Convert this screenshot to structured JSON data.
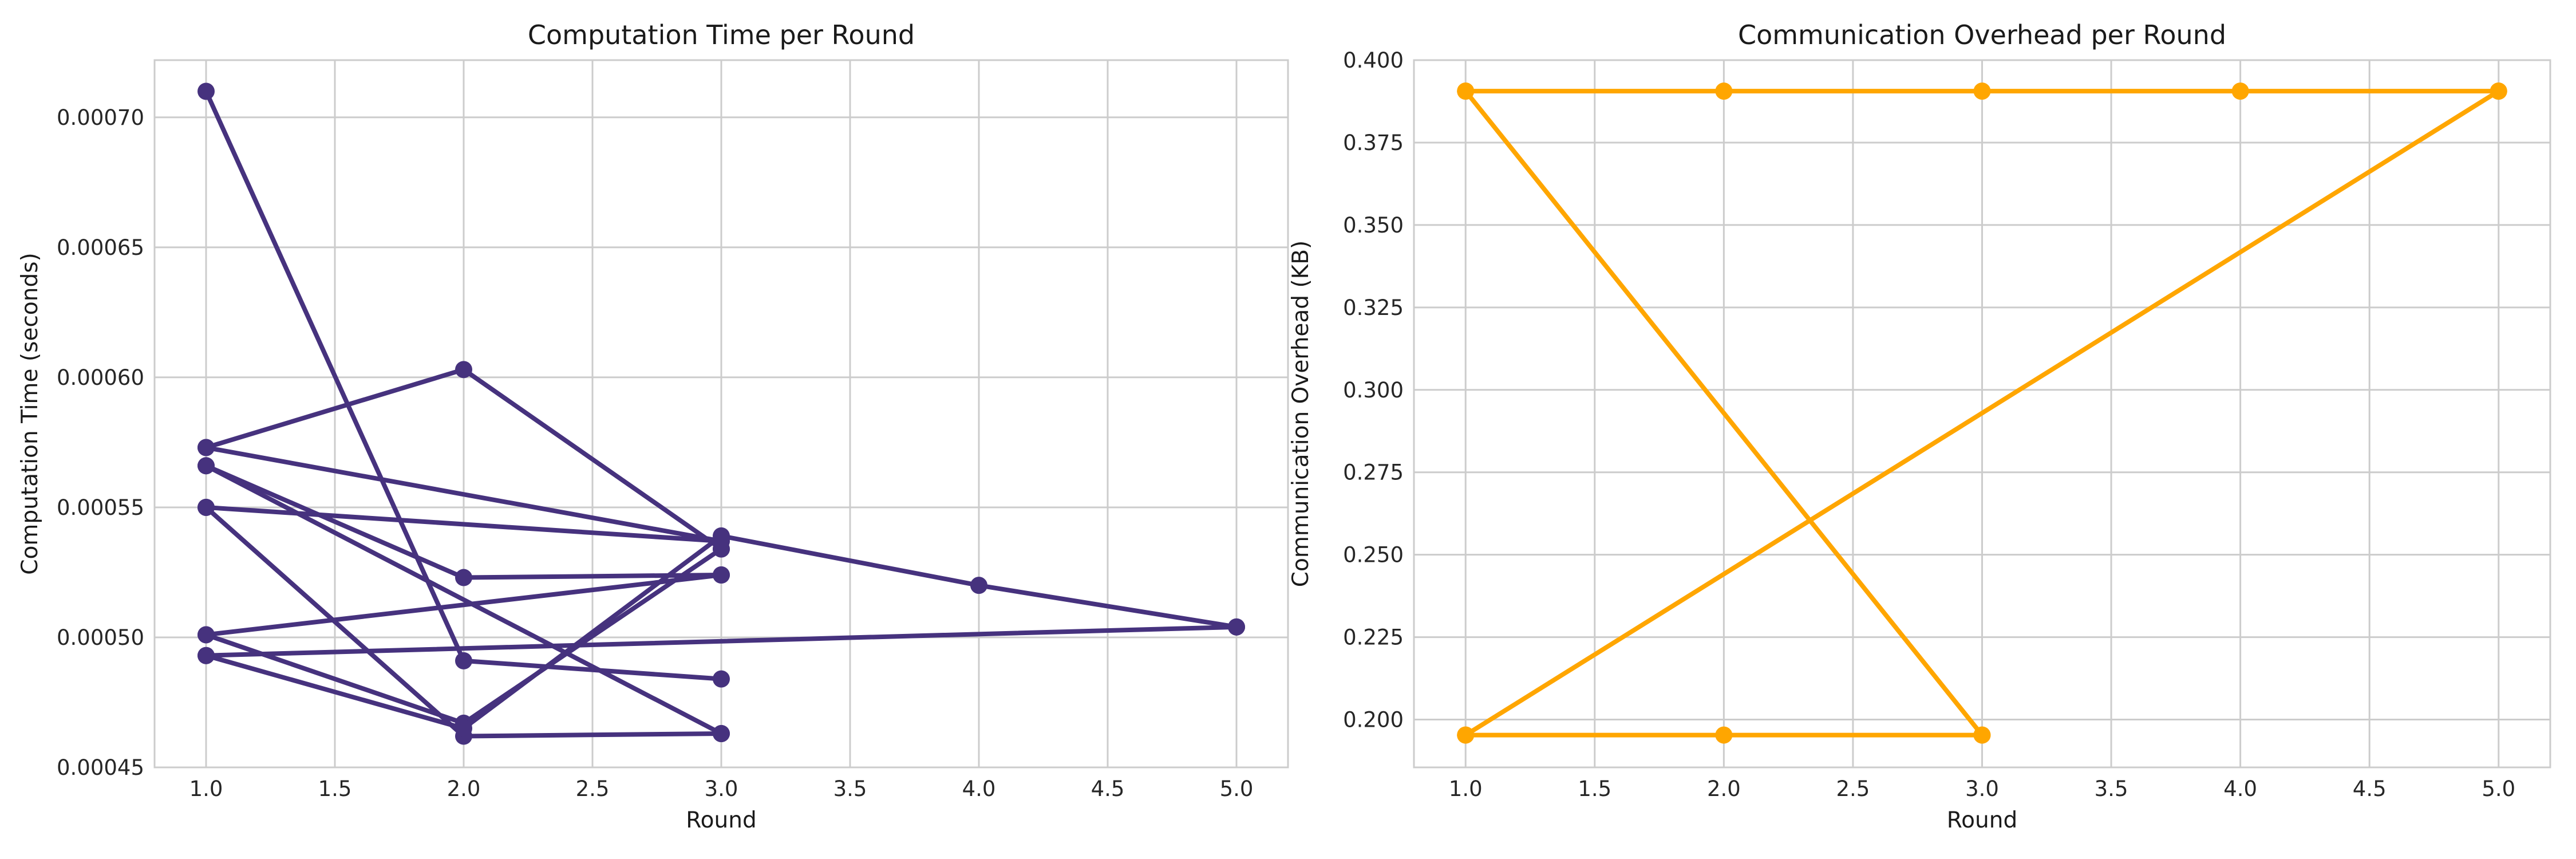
{
  "chart_data": [
    {
      "type": "line",
      "title": "Computation Time per Round",
      "xlabel": "Round",
      "ylabel": "Computation Time (seconds)",
      "xlim": [
        0.8,
        5.2
      ],
      "ylim": [
        0.00045,
        0.000722
      ],
      "xticks": [
        1.0,
        1.5,
        2.0,
        2.5,
        3.0,
        3.5,
        4.0,
        4.5,
        5.0
      ],
      "yticks": [
        0.00045,
        0.0005,
        0.00055,
        0.0006,
        0.00065,
        0.0007
      ],
      "xtick_labels": [
        "1.0",
        "1.5",
        "2.0",
        "2.5",
        "3.0",
        "3.5",
        "4.0",
        "4.5",
        "5.0"
      ],
      "ytick_labels": [
        "0.00045",
        "0.00050",
        "0.00055",
        "0.00060",
        "0.00065",
        "0.00070"
      ],
      "grid": true,
      "color": "#46327e",
      "series": [
        {
          "x": [
            1,
            2,
            3
          ],
          "y": [
            0.00071,
            0.000491,
            0.000484
          ]
        },
        {
          "x": [
            1,
            2,
            3
          ],
          "y": [
            0.000573,
            0.000603,
            0.000534
          ]
        },
        {
          "x": [
            1,
            3
          ],
          "y": [
            0.000573,
            0.000537
          ]
        },
        {
          "x": [
            1,
            2,
            3
          ],
          "y": [
            0.000566,
            0.000523,
            0.000524
          ]
        },
        {
          "x": [
            1,
            3
          ],
          "y": [
            0.000566,
            0.000463
          ]
        },
        {
          "x": [
            1,
            3
          ],
          "y": [
            0.00055,
            0.000537
          ]
        },
        {
          "x": [
            1,
            2,
            3
          ],
          "y": [
            0.00055,
            0.000462,
            0.000463
          ]
        },
        {
          "x": [
            1,
            3
          ],
          "y": [
            0.000501,
            0.000524
          ]
        },
        {
          "x": [
            1,
            2,
            3
          ],
          "y": [
            0.000501,
            0.000467,
            0.000534
          ]
        },
        {
          "x": [
            1,
            5
          ],
          "y": [
            0.000493,
            0.000504
          ]
        },
        {
          "x": [
            1,
            2,
            3,
            4,
            5
          ],
          "y": [
            0.000493,
            0.000465,
            0.000539,
            0.00052,
            0.000504
          ]
        }
      ]
    },
    {
      "type": "line",
      "title": "Communication Overhead per Round",
      "xlabel": "Round",
      "ylabel": "Communication Overhead (KB)",
      "xlim": [
        0.8,
        5.2
      ],
      "ylim": [
        0.1855,
        0.4
      ],
      "xticks": [
        1.0,
        1.5,
        2.0,
        2.5,
        3.0,
        3.5,
        4.0,
        4.5,
        5.0
      ],
      "yticks": [
        0.2,
        0.225,
        0.25,
        0.275,
        0.3,
        0.325,
        0.35,
        0.375,
        0.4
      ],
      "xtick_labels": [
        "1.0",
        "1.5",
        "2.0",
        "2.5",
        "3.0",
        "3.5",
        "4.0",
        "4.5",
        "5.0"
      ],
      "ytick_labels": [
        "0.200",
        "0.225",
        "0.250",
        "0.275",
        "0.300",
        "0.325",
        "0.350",
        "0.375",
        "0.400"
      ],
      "grid": true,
      "color": "#ffa600",
      "series": [
        {
          "x": [
            1,
            2,
            3,
            4,
            5
          ],
          "y": [
            0.3906,
            0.3906,
            0.3906,
            0.3906,
            0.3906
          ]
        },
        {
          "x": [
            1,
            3
          ],
          "y": [
            0.3906,
            0.1953
          ]
        },
        {
          "x": [
            1,
            2,
            3
          ],
          "y": [
            0.1953,
            0.1953,
            0.1953
          ]
        },
        {
          "x": [
            1,
            5
          ],
          "y": [
            0.1953,
            0.3906
          ]
        }
      ]
    }
  ]
}
